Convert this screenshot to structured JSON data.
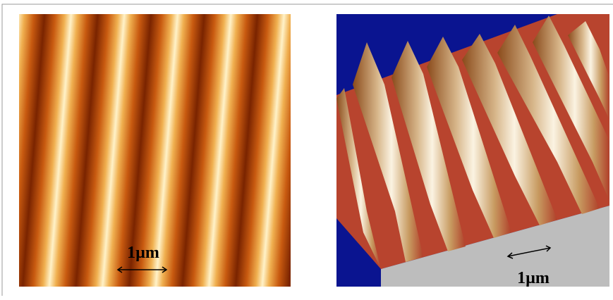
{
  "left_panel": {
    "scale_label": "1µm"
  },
  "right_panel": {
    "scale_label": "1µm"
  }
}
